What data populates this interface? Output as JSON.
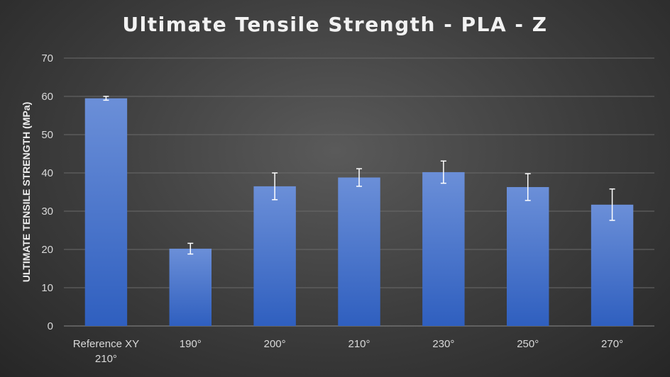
{
  "chart_data": {
    "type": "bar",
    "title": "Ultimate Tensile Strength - PLA - Z",
    "xlabel": "",
    "ylabel": "ULTIMATE TENSILE STRENGTH (MPa)",
    "ylim": [
      0,
      70
    ],
    "yticks": [
      0,
      10,
      20,
      30,
      40,
      50,
      60,
      70
    ],
    "grid": true,
    "categories": [
      [
        "Reference XY",
        "210°"
      ],
      [
        "190°"
      ],
      [
        "200°"
      ],
      [
        "210°"
      ],
      [
        "230°"
      ],
      [
        "250°"
      ],
      [
        "270°"
      ]
    ],
    "values": [
      59.5,
      20.2,
      36.5,
      38.8,
      40.2,
      36.3,
      31.7
    ],
    "error": [
      0.5,
      1.4,
      3.5,
      2.3,
      2.9,
      3.5,
      4.1
    ],
    "colors": {
      "bar_top": "#6b8fd8",
      "bar_bottom": "#2f5fbf",
      "grid": "#6a6a6a",
      "error_bar": "#ffffff"
    }
  }
}
